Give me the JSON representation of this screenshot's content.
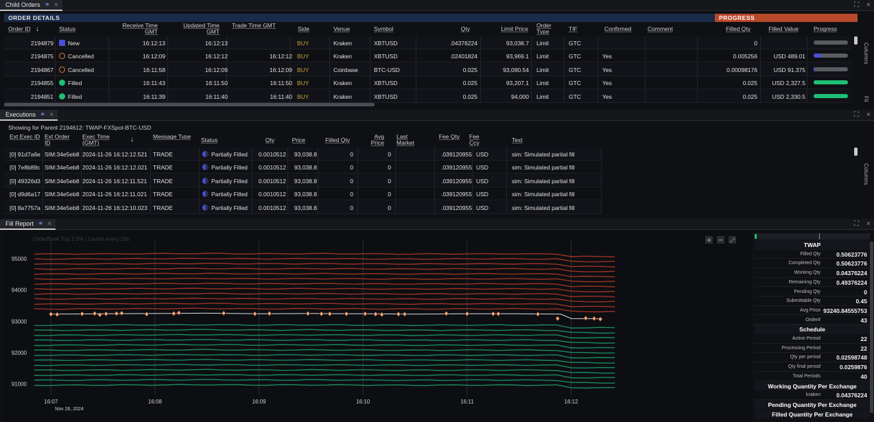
{
  "child_orders": {
    "tab_label": "Child Orders",
    "order_details_label": "ORDER DETAILS",
    "progress_label": "PROGRESS",
    "columns": [
      "Order ID",
      "Status",
      "Receive Time GMT",
      "Updated Time GMT",
      "Trade Time GMT",
      "Side",
      "Venue",
      "Symbol",
      "Qty",
      "Limit Price",
      "Order Type",
      "TIF",
      "Confirmed",
      "Comment",
      "Filled Qty",
      "Filled Value",
      "Progress"
    ],
    "side_labels": [
      "Columns",
      "Fil"
    ],
    "rows": [
      {
        "order_id": "2194879",
        "status": "New",
        "status_icon": "new-icon",
        "receive": "16:12:13",
        "updated": "16:12:13",
        "trade": "",
        "side": "BUY",
        "venue": "Kraken",
        "symbol": "XBTUSD",
        "qty": ".04376224",
        "limit": "93,038.7",
        "type": "Limit",
        "tif": "GTC",
        "confirmed": "",
        "comment": "",
        "filled_qty": "0",
        "filled_value": "",
        "progress": 0.0,
        "progress_color": "#5b5c60"
      },
      {
        "order_id": "2194875",
        "status": "Cancelled",
        "status_icon": "cancelled-icon",
        "receive": "16:12:09",
        "updated": "16:12:12",
        "trade": "16:12:12",
        "side": "BUY",
        "venue": "Kraken",
        "symbol": "XBTUSD",
        "qty": ".02401824",
        "limit": "93,969.1",
        "type": "Limit",
        "tif": "GTC",
        "confirmed": "Yes",
        "comment": "",
        "filled_qty": "0.005256",
        "filled_value": "USD 489.01",
        "progress": 0.22,
        "progress_color": "#4a4fd6"
      },
      {
        "order_id": "2194867",
        "status": "Cancelled",
        "status_icon": "cancelled-icon",
        "receive": "16:11:58",
        "updated": "16:12:09",
        "trade": "16:12:09",
        "side": "BUY",
        "venue": "Coinbase",
        "symbol": "BTC-USD",
        "qty": "0.025",
        "limit": "93,090.54",
        "type": "Limit",
        "tif": "GTC",
        "confirmed": "Yes",
        "comment": "",
        "filled_qty": "0.00098176",
        "filled_value": "USD 91.375",
        "progress": 0.04,
        "progress_color": "#4a4fd6"
      },
      {
        "order_id": "2194855",
        "status": "Filled",
        "status_icon": "filled-icon",
        "receive": "16:11:43",
        "updated": "16:11:50",
        "trade": "16:11:50",
        "side": "BUY",
        "venue": "Kraken",
        "symbol": "XBTUSD",
        "qty": "0.025",
        "limit": "93,207.1",
        "type": "Limit",
        "tif": "GTC",
        "confirmed": "Yes",
        "comment": "",
        "filled_qty": "0.025",
        "filled_value": "USD 2,327.5",
        "progress": 1.0,
        "progress_color": "#1fbf74"
      },
      {
        "order_id": "2194851",
        "status": "Filled",
        "status_icon": "filled-icon",
        "receive": "16:11:39",
        "updated": "16:11:40",
        "trade": "16:11:40",
        "side": "BUY",
        "venue": "Kraken",
        "symbol": "XBTUSD",
        "qty": "0.025",
        "limit": "94,000",
        "type": "Limit",
        "tif": "GTC",
        "confirmed": "Yes",
        "comment": "",
        "filled_qty": "0.025",
        "filled_value": "USD 2,330.5",
        "progress": 1.0,
        "progress_color": "#1fbf74"
      }
    ]
  },
  "executions": {
    "tab_label": "Executions",
    "parent_info": "Showing for Parent 2194612: TWAP-FXSpot-BTC-USD",
    "columns": [
      "Ext Exec ID",
      "Ext Order ID",
      "Exec Time (GMT)",
      "Message Type",
      "Status",
      "Qty",
      "Price",
      "Filled Qty",
      "Avg Price",
      "Last Market",
      "Fee Qty",
      "Fee Ccy",
      "Text"
    ],
    "side_label": "Columns",
    "rows": [
      {
        "exec_id": "[0] 91d7a6e",
        "order_id": "SIM:34e5eb8",
        "time": "2024-11-26 16:12:12.521",
        "msg": "TRADE",
        "status": "Partially Filled",
        "qty": "0.0010512",
        "price": "93,038.8",
        "filled": "0",
        "avg": "0",
        "last": "",
        "fee_qty": ".039120955",
        "fee_ccy": "USD",
        "text": "sim: Simulated partial fill"
      },
      {
        "exec_id": "[0] 7e8b89c",
        "order_id": "SIM:34e5eb8",
        "time": "2024-11-26 16:12:12.021",
        "msg": "TRADE",
        "status": "Partially Filled",
        "qty": "0.0010512",
        "price": "93,038.8",
        "filled": "0",
        "avg": "0",
        "last": "",
        "fee_qty": ".039120955",
        "fee_ccy": "USD",
        "text": "sim: Simulated partial fill"
      },
      {
        "exec_id": "[0] 49326d3",
        "order_id": "SIM:34e5eb8",
        "time": "2024-11-26 16:12:11.521",
        "msg": "TRADE",
        "status": "Partially Filled",
        "qty": "0.0010512",
        "price": "93,038.8",
        "filled": "0",
        "avg": "0",
        "last": "",
        "fee_qty": ".039120955",
        "fee_ccy": "USD",
        "text": "sim: Simulated partial fill"
      },
      {
        "exec_id": "[0] d9d6a17",
        "order_id": "SIM:34e5eb8",
        "time": "2024-11-26 16:12:11.021",
        "msg": "TRADE",
        "status": "Partially Filled",
        "qty": "0.0010512",
        "price": "93,038.8",
        "filled": "0",
        "avg": "0",
        "last": "",
        "fee_qty": ".039120955",
        "fee_ccy": "USD",
        "text": "sim: Simulated partial fill"
      },
      {
        "exec_id": "[0] 8a7757a",
        "order_id": "SIM:34e5eb8",
        "time": "2024-11-26 16:12:10.023",
        "msg": "TRADE",
        "status": "Partially Filled",
        "qty": "0.0010512",
        "price": "93,038.8",
        "filled": "0",
        "avg": "0",
        "last": "",
        "fee_qty": ".039120955",
        "fee_ccy": "USD",
        "text": "sim: Simulated partial fill"
      }
    ]
  },
  "fill_report": {
    "tab_label": "Fill Report",
    "chart_caption": "OrderBook Top 2.5% | Levels every 10s",
    "metrics": [
      {
        "type": "head",
        "label": "TWAP"
      },
      {
        "type": "kv",
        "key": "Filled Qty",
        "value": "0.50623776"
      },
      {
        "type": "kv",
        "key": "Completed Qty",
        "value": "0.50623776"
      },
      {
        "type": "kv",
        "key": "Working Qty",
        "value": "0.04376224"
      },
      {
        "type": "kv",
        "key": "Remaining Qty",
        "value": "0.49376224"
      },
      {
        "type": "kv",
        "key": "Pending Qty",
        "value": "0"
      },
      {
        "type": "kv",
        "key": "Submittable Qty",
        "value": "0.45"
      },
      {
        "type": "kv",
        "key": "Avg Price",
        "value": "93240.84555753"
      },
      {
        "type": "kv",
        "key": "Order#",
        "value": "43"
      },
      {
        "type": "head",
        "label": "Schedule"
      },
      {
        "type": "kv",
        "key": "Active Period",
        "value": "22"
      },
      {
        "type": "kv",
        "key": "Processing Period",
        "value": "22"
      },
      {
        "type": "kv",
        "key": "Qty per period",
        "value": "0.02598748"
      },
      {
        "type": "kv",
        "key": "Qty final period",
        "value": "0.0259876"
      },
      {
        "type": "kv",
        "key": "Total Periods",
        "value": "40"
      },
      {
        "type": "head",
        "label": "Working Quantity Per Exchange"
      },
      {
        "type": "kv",
        "key": "kraken",
        "value": "0.04376224"
      },
      {
        "type": "head",
        "label": "Pending Quantity Per Exchange"
      },
      {
        "type": "head",
        "label": "Filled Quantity Per Exchange"
      }
    ]
  },
  "chart_data": {
    "type": "scatter",
    "title": "",
    "y_ticks": [
      95000,
      94000,
      93000,
      92000,
      91000
    ],
    "ylim": [
      90700,
      95400
    ],
    "x_ticks": [
      "16:07",
      "16:08",
      "16:09",
      "16:10",
      "16:11",
      "16:12"
    ],
    "x_date_label": "Nov 26, 2024",
    "xlim_minutes": [
      -0.16,
      6.46
    ],
    "ask_levels": [
      93400,
      93560,
      93720,
      93880,
      94040,
      94200,
      94360,
      94520,
      94680,
      94840,
      95000,
      95160
    ],
    "bid_levels": [
      92880,
      92720,
      92560,
      92400,
      92240,
      92080,
      91920,
      91760,
      91600,
      91440,
      91280,
      91120,
      90960
    ],
    "colors": {
      "ask": "#b43a26",
      "bid": "#1fa06a",
      "fill": "#f5a676",
      "mid": "#e0e0e0"
    },
    "fills": [
      {
        "t": 0.0,
        "p": 93230
      },
      {
        "t": 0.06,
        "p": 93220
      },
      {
        "t": 0.3,
        "p": 93240
      },
      {
        "t": 0.42,
        "p": 93250
      },
      {
        "t": 0.47,
        "p": 93210
      },
      {
        "t": 0.53,
        "p": 93240
      },
      {
        "t": 0.63,
        "p": 93250
      },
      {
        "t": 0.68,
        "p": 93260
      },
      {
        "t": 0.92,
        "p": 93230
      },
      {
        "t": 1.18,
        "p": 93250
      },
      {
        "t": 1.23,
        "p": 93270
      },
      {
        "t": 1.66,
        "p": 93260
      },
      {
        "t": 1.96,
        "p": 93240
      },
      {
        "t": 2.1,
        "p": 93250
      },
      {
        "t": 2.47,
        "p": 93250
      },
      {
        "t": 2.6,
        "p": 93240
      },
      {
        "t": 2.68,
        "p": 93240
      },
      {
        "t": 2.84,
        "p": 93240
      },
      {
        "t": 3.02,
        "p": 93240
      },
      {
        "t": 3.12,
        "p": 93230
      },
      {
        "t": 3.18,
        "p": 93220
      },
      {
        "t": 3.34,
        "p": 93230
      },
      {
        "t": 3.4,
        "p": 93230
      },
      {
        "t": 3.8,
        "p": 93250
      },
      {
        "t": 4.0,
        "p": 93240
      },
      {
        "t": 4.25,
        "p": 93240
      },
      {
        "t": 4.3,
        "p": 93240
      },
      {
        "t": 4.68,
        "p": 93230
      },
      {
        "t": 4.87,
        "p": 93090
      },
      {
        "t": 5.14,
        "p": 93100
      },
      {
        "t": 5.22,
        "p": 93090
      },
      {
        "t": 5.28,
        "p": 93070
      }
    ],
    "mid_path": [
      {
        "t": 0.0,
        "p": 93230
      },
      {
        "t": 0.5,
        "p": 93240
      },
      {
        "t": 1.0,
        "p": 93250
      },
      {
        "t": 1.5,
        "p": 93260
      },
      {
        "t": 2.0,
        "p": 93240
      },
      {
        "t": 2.5,
        "p": 93250
      },
      {
        "t": 3.0,
        "p": 93240
      },
      {
        "t": 3.5,
        "p": 93230
      },
      {
        "t": 4.0,
        "p": 93240
      },
      {
        "t": 4.5,
        "p": 93240
      },
      {
        "t": 4.9,
        "p": 93230
      },
      {
        "t": 5.0,
        "p": 93090
      },
      {
        "t": 5.3,
        "p": 93080
      }
    ]
  }
}
